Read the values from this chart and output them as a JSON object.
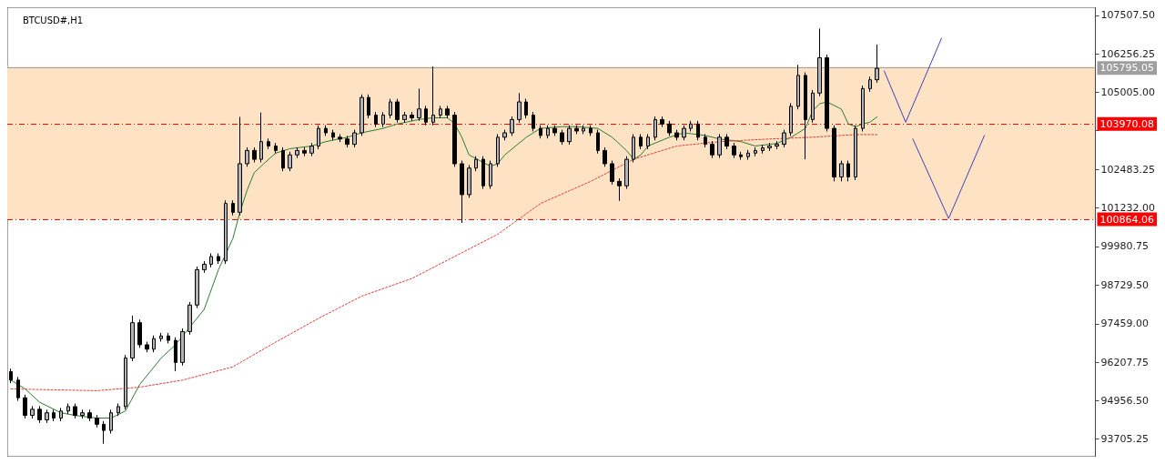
{
  "chart_data": {
    "type": "candlestick",
    "title": "BTCUSD#,H1",
    "categories": [
      null,
      null,
      null,
      null,
      null,
      null,
      null,
      null,
      null,
      null,
      null,
      null,
      null,
      null,
      null,
      null,
      null,
      null,
      null,
      null,
      null,
      null,
      null,
      null,
      null,
      null,
      null,
      null,
      null,
      null,
      null,
      null,
      null,
      null,
      null,
      null,
      null,
      null,
      null,
      null,
      null,
      null,
      null,
      null,
      null,
      null,
      null,
      null,
      null,
      null,
      null,
      null,
      null,
      null,
      null,
      null,
      null,
      null,
      null,
      null,
      null,
      null,
      null,
      null,
      null,
      null,
      null,
      null,
      null,
      null,
      null,
      null,
      null,
      null,
      null,
      null,
      null,
      null,
      null,
      null,
      null,
      null,
      null,
      null,
      null,
      null,
      null,
      null,
      null,
      null,
      null,
      null,
      null,
      null,
      null,
      null,
      null,
      null,
      null,
      null,
      null,
      null,
      null,
      null,
      null,
      null,
      null,
      null,
      null,
      null,
      null,
      null,
      null,
      null,
      null,
      null,
      null,
      null,
      null,
      null,
      null,
      null,
      null,
      null,
      null,
      null,
      null,
      null,
      null,
      null,
      null,
      null,
      null,
      null,
      null,
      null,
      null,
      null,
      null,
      null,
      null,
      null,
      null,
      null,
      null,
      null,
      null,
      null,
      null,
      null,
      null,
      null
    ],
    "ylim": [
      93130,
      107770
    ],
    "yticks": [
      {
        "value": 107507.5,
        "label": "107507.50"
      },
      {
        "value": 106256.25,
        "label": "106256.25"
      },
      {
        "value": 105005,
        "label": "105005.00"
      },
      {
        "value": 103754.5,
        "label": null
      },
      {
        "value": 102483.25,
        "label": "102483.25"
      },
      {
        "value": 101232,
        "label": "101232.00"
      },
      {
        "value": 99980.75,
        "label": "99980.75"
      },
      {
        "value": 98729.5,
        "label": "98729.50"
      },
      {
        "value": 97459,
        "label": "97459.00"
      },
      {
        "value": 96207.75,
        "label": "96207.75"
      },
      {
        "value": 94956.5,
        "label": "94956.50"
      },
      {
        "value": 93705.25,
        "label": "93705.25"
      }
    ],
    "tick_labels": "y",
    "grid": false,
    "ref_lines": [
      {
        "axis": "y",
        "value": 105795.05,
        "label": "105795.05",
        "color": "#9e9e9e",
        "line_style": "solid"
      },
      {
        "axis": "y",
        "value": 103970.08,
        "label": "103970.08",
        "color": "#ff0000",
        "line_style": "dashed"
      },
      {
        "axis": "y",
        "value": 100864.06,
        "label": "100864.06",
        "color": "#ff0000",
        "line_style": "dashed"
      }
    ],
    "bands": [
      {
        "axis": "y",
        "from": 100864.06,
        "to": 105830,
        "color": "#fde3c4"
      }
    ],
    "series": [
      {
        "color": "#000000",
        "ohlc": [
          [
            95900,
            96000,
            95526,
            95626
          ],
          [
            95626,
            95726,
            94950,
            95050
          ],
          [
            95050,
            95150,
            94375,
            94475
          ],
          [
            94475,
            94776,
            94375,
            94676
          ],
          [
            94676,
            94776,
            94231,
            94331
          ],
          [
            94331,
            94661,
            94231,
            94561
          ],
          [
            94561,
            94661,
            94289,
            94389
          ],
          [
            94389,
            94719,
            94289,
            94619
          ],
          [
            94619,
            94863,
            94519,
            94763
          ],
          [
            94763,
            94863,
            94375,
            94475
          ],
          [
            94475,
            94661,
            94375,
            94561
          ],
          [
            94561,
            94661,
            94289,
            94389
          ],
          [
            94389,
            94489,
            94087,
            94187
          ],
          [
            94187,
            94287,
            93554,
            93986
          ],
          [
            93986,
            94661,
            93886,
            94561
          ],
          [
            94561,
            94863,
            94461,
            94763
          ],
          [
            94763,
            96445,
            94663,
            96345
          ],
          [
            96345,
            97726,
            96245,
            97496
          ],
          [
            97496,
            97596,
            96677,
            96777
          ],
          [
            96777,
            96877,
            96533,
            96633
          ],
          [
            96633,
            97078,
            96533,
            96978
          ],
          [
            96978,
            97164,
            96878,
            97064
          ],
          [
            97064,
            97164,
            96820,
            96920
          ],
          [
            96920,
            97020,
            95913,
            96201
          ],
          [
            96201,
            97308,
            96101,
            97208
          ],
          [
            97208,
            98171,
            97108,
            98071
          ],
          [
            98071,
            99322,
            97971,
            99222
          ],
          [
            99222,
            99500,
            99122,
            99400
          ],
          [
            99400,
            99753,
            99300,
            99653
          ],
          [
            99653,
            99753,
            99410,
            99510
          ],
          [
            99510,
            101480,
            99410,
            101380
          ],
          [
            101380,
            101480,
            100992,
            101092
          ],
          [
            101092,
            104199,
            100992,
            102674
          ],
          [
            102674,
            103206,
            102574,
            103106
          ],
          [
            103106,
            103206,
            102718,
            102818
          ],
          [
            102818,
            104343,
            102718,
            103394
          ],
          [
            103394,
            103494,
            103150,
            103250
          ],
          [
            103250,
            103350,
            103006,
            103106
          ],
          [
            103106,
            103206,
            102431,
            102531
          ],
          [
            102531,
            103062,
            102431,
            102962
          ],
          [
            102962,
            103206,
            102862,
            103106
          ],
          [
            103106,
            103206,
            102920,
            103020
          ],
          [
            103020,
            103350,
            102920,
            103250
          ],
          [
            103250,
            103925,
            103150,
            103825
          ],
          [
            103825,
            103925,
            103581,
            103681
          ],
          [
            103681,
            103781,
            103437,
            103537
          ],
          [
            103537,
            103637,
            103380,
            103480
          ],
          [
            103480,
            103580,
            103207,
            103307
          ],
          [
            103307,
            103781,
            103207,
            103681
          ],
          [
            103681,
            104932,
            103581,
            104832
          ],
          [
            104832,
            104932,
            104157,
            104257
          ],
          [
            104257,
            104357,
            103869,
            103969
          ],
          [
            103969,
            104357,
            103869,
            104257
          ],
          [
            104257,
            104788,
            104157,
            104688
          ],
          [
            104688,
            104788,
            104013,
            104113
          ],
          [
            104113,
            104357,
            104013,
            104257
          ],
          [
            104257,
            104357,
            104070,
            104170
          ],
          [
            104170,
            105120,
            104070,
            104458
          ],
          [
            104458,
            104558,
            103927,
            104027
          ],
          [
            104027,
            105839,
            103927,
            104257
          ],
          [
            104257,
            104558,
            104157,
            104458
          ],
          [
            104458,
            104558,
            104157,
            104257
          ],
          [
            104257,
            104357,
            102574,
            102674
          ],
          [
            102674,
            102774,
            100746,
            101667
          ],
          [
            101667,
            102631,
            101567,
            102531
          ],
          [
            102531,
            102918,
            102431,
            102818
          ],
          [
            102818,
            102918,
            101855,
            101955
          ],
          [
            101955,
            102774,
            101855,
            102674
          ],
          [
            102674,
            103637,
            102574,
            103537
          ],
          [
            103537,
            103781,
            103437,
            103681
          ],
          [
            103681,
            104213,
            103581,
            104113
          ],
          [
            104113,
            104976,
            104013,
            104688
          ],
          [
            104688,
            104788,
            104157,
            104257
          ],
          [
            104257,
            104357,
            103725,
            103825
          ],
          [
            103825,
            103925,
            103495,
            103595
          ],
          [
            103595,
            103925,
            103495,
            103825
          ],
          [
            103825,
            103925,
            103581,
            103681
          ],
          [
            103681,
            103781,
            103294,
            103394
          ],
          [
            103394,
            103925,
            103294,
            103825
          ],
          [
            103825,
            103925,
            103639,
            103739
          ],
          [
            103739,
            103925,
            103639,
            103825
          ],
          [
            103825,
            103925,
            103581,
            103681
          ],
          [
            103681,
            103781,
            103006,
            103106
          ],
          [
            103106,
            103206,
            102574,
            102674
          ],
          [
            102674,
            102774,
            101999,
            102099
          ],
          [
            102099,
            102199,
            101464,
            101955
          ],
          [
            101955,
            102918,
            101855,
            102818
          ],
          [
            102818,
            103637,
            102718,
            103537
          ],
          [
            103537,
            103637,
            103150,
            103250
          ],
          [
            103250,
            103637,
            103150,
            103537
          ],
          [
            103537,
            104213,
            103437,
            104113
          ],
          [
            104113,
            104213,
            103869,
            103969
          ],
          [
            103969,
            104069,
            103581,
            103681
          ],
          [
            103681,
            103781,
            103437,
            103537
          ],
          [
            103537,
            103925,
            103437,
            103825
          ],
          [
            103825,
            104069,
            103725,
            103969
          ],
          [
            103969,
            104069,
            103437,
            103537
          ],
          [
            103537,
            103637,
            103207,
            103307
          ],
          [
            103307,
            103407,
            102862,
            102962
          ],
          [
            102962,
            103637,
            102862,
            103537
          ],
          [
            103537,
            103637,
            103150,
            103250
          ],
          [
            103250,
            103350,
            102862,
            102962
          ],
          [
            102962,
            103062,
            102805,
            102905
          ],
          [
            102905,
            103120,
            102805,
            103020
          ],
          [
            103020,
            103206,
            102920,
            103106
          ],
          [
            103106,
            103292,
            103006,
            103192
          ],
          [
            103192,
            103350,
            103092,
            103250
          ],
          [
            103250,
            103407,
            103150,
            103307
          ],
          [
            103307,
            103781,
            103207,
            103681
          ],
          [
            103681,
            104644,
            103581,
            104544
          ],
          [
            104544,
            105896,
            104444,
            105551
          ],
          [
            105551,
            105651,
            102818,
            104113
          ],
          [
            104113,
            105076,
            104013,
            104976
          ],
          [
            104976,
            107076,
            104876,
            106127
          ],
          [
            106127,
            106227,
            103725,
            103825
          ],
          [
            103825,
            103925,
            102099,
            102243
          ],
          [
            102243,
            102774,
            102099,
            102674
          ],
          [
            102674,
            102774,
            102099,
            102243
          ],
          [
            102243,
            103925,
            102143,
            103825
          ],
          [
            103825,
            105220,
            103725,
            105120
          ],
          [
            105120,
            105508,
            105020,
            105408
          ],
          [
            105408,
            106558,
            105308,
            105782
          ],
          null,
          null,
          null,
          null,
          null,
          null,
          null,
          null,
          null,
          null,
          null,
          null,
          null,
          null,
          null,
          null,
          null,
          null,
          null,
          null,
          null,
          null,
          null,
          null,
          null,
          null,
          null,
          null,
          null,
          null
        ]
      },
      {
        "type": "line",
        "color": "#2e7d32",
        "line_style": "solid",
        "values": [
          95626,
          null,
          95338,
          null,
          94907,
          null,
          null,
          94561,
          null,
          94475,
          null,
          null,
          94389,
          null,
          94389,
          null,
          94619,
          null,
          95482,
          null,
          null,
          96345,
          null,
          96777,
          97064,
          null,
          null,
          97927,
          null,
          99222,
          null,
          100229,
          101092,
          101811,
          102387,
          null,
          102818,
          103020,
          null,
          103164,
          null,
          null,
          103250,
          null,
          103394,
          null,
          null,
          103537,
          null,
          103681,
          null,
          null,
          103825,
          null,
          103969,
          null,
          null,
          104113,
          null,
          104170,
          null,
          104170,
          103969,
          103537,
          102962,
          null,
          null,
          102588,
          102674,
          102962,
          null,
          null,
          103537,
          null,
          103825,
          null,
          null,
          103882,
          null,
          103882,
          null,
          null,
          103825,
          null,
          103537,
          null,
          103106,
          102818,
          102962,
          103250,
          null,
          null,
          103537,
          null,
          103681,
          null,
          null,
          103595,
          null,
          103480,
          null,
          null,
          103394,
          null,
          103250,
          null,
          null,
          103336,
          null,
          103537,
          null,
          103825,
          104400,
          104630,
          104688,
          null,
          104458,
          103969,
          103882,
          103969,
          104027,
          104199,
          null,
          null,
          null,
          null,
          null,
          null,
          null,
          null,
          null,
          null,
          null,
          null,
          null,
          null,
          null,
          null,
          null,
          null,
          null,
          null,
          null,
          null,
          null,
          null,
          null,
          null,
          null,
          null,
          null,
          null
        ]
      },
      {
        "type": "line",
        "color": "#e53935",
        "line_style": "dotted",
        "values": [
          95338,
          null,
          null,
          null,
          null,
          null,
          null,
          null,
          null,
          null,
          null,
          null,
          95281,
          null,
          null,
          null,
          null,
          null,
          95396,
          null,
          null,
          null,
          null,
          null,
          95626,
          null,
          null,
          null,
          null,
          null,
          null,
          96057,
          null,
          null,
          null,
          null,
          null,
          96863,
          null,
          null,
          null,
          null,
          null,
          97640,
          null,
          null,
          null,
          null,
          null,
          98359,
          null,
          null,
          null,
          null,
          null,
          null,
          98934,
          null,
          null,
          null,
          null,
          null,
          99654,
          null,
          null,
          null,
          null,
          null,
          100373,
          null,
          null,
          null,
          null,
          null,
          101380,
          null,
          null,
          null,
          null,
          null,
          null,
          102099,
          null,
          null,
          null,
          null,
          null,
          102818,
          null,
          null,
          null,
          null,
          null,
          103250,
          null,
          null,
          null,
          null,
          null,
          103394,
          null,
          null,
          null,
          null,
          null,
          null,
          103480,
          null,
          null,
          null,
          null,
          null,
          103537,
          null,
          null,
          null,
          null,
          null,
          103624,
          null,
          null,
          103624,
          null,
          null,
          null,
          null,
          null,
          null,
          null,
          null,
          null,
          null,
          null,
          null,
          null,
          null,
          null,
          null,
          null,
          null,
          null,
          null,
          null,
          null,
          null,
          null,
          null,
          null,
          null,
          null,
          null,
          null
        ]
      },
      {
        "type": "line",
        "color": "#3f3fbf",
        "line_style": "solid",
        "values": [
          null,
          null,
          null,
          null,
          null,
          null,
          null,
          null,
          null,
          null,
          null,
          null,
          null,
          null,
          null,
          null,
          null,
          null,
          null,
          null,
          null,
          null,
          null,
          null,
          null,
          null,
          null,
          null,
          null,
          null,
          null,
          null,
          null,
          null,
          null,
          null,
          null,
          null,
          null,
          null,
          null,
          null,
          null,
          null,
          null,
          null,
          null,
          null,
          null,
          null,
          null,
          null,
          null,
          null,
          null,
          null,
          null,
          null,
          null,
          null,
          null,
          null,
          null,
          null,
          null,
          null,
          null,
          null,
          null,
          null,
          null,
          null,
          null,
          null,
          null,
          null,
          null,
          null,
          null,
          null,
          null,
          null,
          null,
          null,
          null,
          null,
          null,
          null,
          null,
          null,
          null,
          null,
          null,
          null,
          null,
          null,
          null,
          null,
          null,
          null,
          null,
          null,
          null,
          null,
          null,
          null,
          null,
          null,
          null,
          null,
          null,
          null,
          null,
          null,
          null,
          null,
          null,
          null,
          null,
          null,
          null,
          null,
          105695,
          null,
          null,
          104027,
          null,
          null,
          null,
          null,
          106760,
          null,
          null,
          null,
          null,
          null,
          null,
          null,
          null,
          null,
          null,
          null,
          null,
          null,
          null,
          null,
          null,
          null,
          null,
          null,
          null,
          null
        ]
      },
      {
        "type": "line",
        "color": "#3f3fbf",
        "line_style": "solid",
        "values": [
          null,
          null,
          null,
          null,
          null,
          null,
          null,
          null,
          null,
          null,
          null,
          null,
          null,
          null,
          null,
          null,
          null,
          null,
          null,
          null,
          null,
          null,
          null,
          null,
          null,
          null,
          null,
          null,
          null,
          null,
          null,
          null,
          null,
          null,
          null,
          null,
          null,
          null,
          null,
          null,
          null,
          null,
          null,
          null,
          null,
          null,
          null,
          null,
          null,
          null,
          null,
          null,
          null,
          null,
          null,
          null,
          null,
          null,
          null,
          null,
          null,
          null,
          null,
          null,
          null,
          null,
          null,
          null,
          null,
          null,
          null,
          null,
          null,
          null,
          null,
          null,
          null,
          null,
          null,
          null,
          null,
          null,
          null,
          null,
          null,
          null,
          null,
          null,
          null,
          null,
          null,
          null,
          null,
          null,
          null,
          null,
          null,
          null,
          null,
          null,
          null,
          null,
          null,
          null,
          null,
          null,
          null,
          null,
          null,
          null,
          null,
          null,
          null,
          null,
          null,
          null,
          null,
          null,
          null,
          null,
          null,
          null,
          null,
          null,
          null,
          null,
          103480,
          null,
          null,
          null,
          null,
          100891,
          null,
          null,
          null,
          null,
          103595,
          null,
          null,
          null,
          null,
          null,
          null,
          null,
          null,
          null,
          null,
          null,
          null,
          null,
          null,
          null
        ]
      }
    ]
  }
}
